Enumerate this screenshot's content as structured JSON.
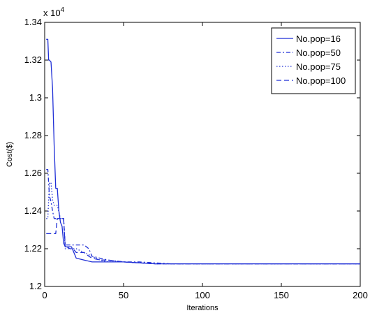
{
  "chart_data": {
    "type": "line",
    "xlabel": "Iterations",
    "ylabel": "Cost($)",
    "y_exponent_label": "x 10",
    "y_exponent_power": "4",
    "xlim": [
      0,
      200
    ],
    "ylim": [
      1.2,
      1.34
    ],
    "x_ticks": [
      0,
      50,
      100,
      150,
      200
    ],
    "y_ticks": [
      1.2,
      1.22,
      1.24,
      1.26,
      1.28,
      1.3,
      1.32,
      1.34
    ],
    "x_tick_labels": [
      "0",
      "50",
      "100",
      "150",
      "200"
    ],
    "y_tick_labels": [
      "1.2",
      "1.22",
      "1.24",
      "1.26",
      "1.28",
      "1.3",
      "1.32",
      "1.34"
    ],
    "legend_position": "top-right",
    "color": "#1f2fd6",
    "series": [
      {
        "name": "No.pop=16",
        "style": "solid",
        "x": [
          1,
          2,
          2.5,
          3,
          4,
          5,
          6,
          7,
          8,
          9,
          10,
          11,
          12,
          13,
          15,
          17,
          20,
          25,
          30,
          40,
          50,
          70,
          100,
          150,
          200
        ],
        "y": [
          1.331,
          1.331,
          1.32,
          1.32,
          1.319,
          1.305,
          1.275,
          1.252,
          1.252,
          1.24,
          1.234,
          1.232,
          1.223,
          1.221,
          1.221,
          1.221,
          1.215,
          1.214,
          1.213,
          1.213,
          1.213,
          1.212,
          1.212,
          1.212,
          1.212
        ]
      },
      {
        "name": "No.pop=50",
        "style": "dashdot",
        "x": [
          1,
          2,
          3,
          4,
          5,
          6,
          7,
          8,
          10,
          12,
          13,
          14,
          20,
          22,
          25,
          28,
          30,
          35,
          40,
          50,
          60,
          80,
          100,
          150,
          200
        ],
        "y": [
          1.262,
          1.262,
          1.248,
          1.245,
          1.24,
          1.236,
          1.236,
          1.236,
          1.236,
          1.236,
          1.222,
          1.222,
          1.222,
          1.222,
          1.222,
          1.22,
          1.216,
          1.215,
          1.214,
          1.213,
          1.213,
          1.212,
          1.212,
          1.212,
          1.212
        ]
      },
      {
        "name": "No.pop=75",
        "style": "dotted",
        "x": [
          1,
          2,
          3,
          4,
          5,
          6,
          7,
          8,
          10,
          12,
          13,
          14,
          18,
          20,
          25,
          30,
          35,
          40,
          50,
          70,
          100,
          150,
          200
        ],
        "y": [
          1.236,
          1.236,
          1.255,
          1.255,
          1.246,
          1.243,
          1.243,
          1.243,
          1.236,
          1.236,
          1.22,
          1.22,
          1.22,
          1.22,
          1.218,
          1.216,
          1.214,
          1.213,
          1.213,
          1.212,
          1.212,
          1.212,
          1.212
        ]
      },
      {
        "name": "No.pop=100",
        "style": "dashed",
        "x": [
          1,
          2,
          3,
          5,
          7,
          8,
          10,
          12,
          13,
          14,
          16,
          18,
          20,
          25,
          28,
          30,
          35,
          40,
          50,
          70,
          100,
          150,
          200
        ],
        "y": [
          1.228,
          1.228,
          1.228,
          1.228,
          1.228,
          1.236,
          1.236,
          1.236,
          1.221,
          1.221,
          1.22,
          1.22,
          1.218,
          1.218,
          1.216,
          1.215,
          1.214,
          1.214,
          1.213,
          1.212,
          1.212,
          1.212,
          1.212
        ]
      }
    ]
  }
}
